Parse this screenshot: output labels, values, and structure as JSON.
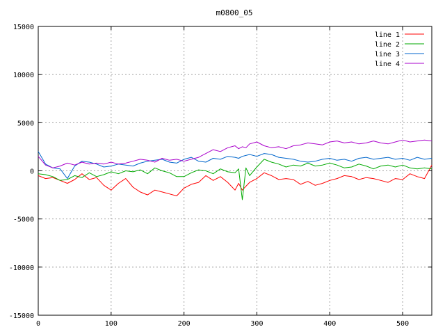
{
  "chart_data": {
    "type": "line",
    "title": "m0800_05",
    "xlabel": "",
    "ylabel": "",
    "xlim": [
      0,
      540
    ],
    "ylim": [
      -15000,
      15000
    ],
    "xticks": [
      0,
      100,
      200,
      300,
      400,
      500
    ],
    "yticks": [
      -15000,
      -10000,
      -5000,
      0,
      5000,
      10000,
      15000
    ],
    "xtick_labels": [
      "0",
      "100",
      "200",
      "300",
      "400",
      "500"
    ],
    "ytick_labels": [
      "-15000",
      "-10000",
      "-5000",
      "0",
      "5000",
      "10000",
      "15000"
    ],
    "grid": true,
    "legend_position": "top-right",
    "x": [
      0,
      10,
      20,
      30,
      40,
      50,
      60,
      70,
      80,
      90,
      100,
      110,
      120,
      130,
      140,
      150,
      160,
      170,
      180,
      190,
      200,
      210,
      220,
      230,
      240,
      250,
      260,
      270,
      275,
      280,
      285,
      290,
      300,
      310,
      320,
      330,
      340,
      350,
      360,
      370,
      380,
      390,
      400,
      410,
      420,
      430,
      440,
      450,
      460,
      470,
      480,
      490,
      500,
      510,
      520,
      530,
      540
    ],
    "series": [
      {
        "name": "line 1",
        "color": "#ff0000",
        "values": [
          -500,
          -800,
          -700,
          -1000,
          -1300,
          -900,
          -300,
          -900,
          -700,
          -1500,
          -2000,
          -1300,
          -800,
          -1700,
          -2200,
          -2500,
          -2000,
          -2200,
          -2400,
          -2600,
          -1800,
          -1400,
          -1200,
          -500,
          -1000,
          -600,
          -1200,
          -2000,
          -1300,
          -2000,
          -1600,
          -1200,
          -800,
          -200,
          -500,
          -900,
          -800,
          -900,
          -1400,
          -1100,
          -1500,
          -1300,
          -1000,
          -800,
          -500,
          -600,
          -900,
          -700,
          -800,
          -1000,
          -1200,
          -800,
          -900,
          -300,
          -600,
          -800,
          600
        ]
      },
      {
        "name": "line 2",
        "color": "#00aa00",
        "values": [
          -300,
          -400,
          -600,
          -1000,
          -900,
          -500,
          -700,
          -200,
          -600,
          -400,
          -100,
          -300,
          0,
          -100,
          100,
          -300,
          300,
          0,
          -200,
          -600,
          -600,
          -200,
          100,
          0,
          -300,
          200,
          -100,
          -200,
          200,
          -3000,
          300,
          -500,
          400,
          1200,
          900,
          700,
          400,
          600,
          500,
          800,
          500,
          600,
          800,
          600,
          300,
          400,
          700,
          500,
          200,
          500,
          600,
          400,
          600,
          300,
          200,
          300,
          200
        ]
      },
      {
        "name": "line 3",
        "color": "#0066cc",
        "values": [
          2000,
          700,
          300,
          200,
          -800,
          500,
          1000,
          900,
          700,
          400,
          500,
          700,
          600,
          500,
          800,
          1000,
          1100,
          1200,
          900,
          800,
          1200,
          1400,
          1000,
          900,
          1300,
          1200,
          1500,
          1400,
          1300,
          1500,
          1600,
          1700,
          1500,
          1800,
          1700,
          1400,
          1300,
          1200,
          1000,
          900,
          1000,
          1200,
          1300,
          1100,
          1200,
          1000,
          1300,
          1400,
          1200,
          1300,
          1400,
          1200,
          1300,
          1100,
          1400,
          1200,
          1300
        ]
      },
      {
        "name": "line 4",
        "color": "#aa00cc",
        "values": [
          1500,
          600,
          300,
          500,
          800,
          600,
          900,
          700,
          800,
          700,
          900,
          700,
          800,
          1000,
          1200,
          1100,
          900,
          1300,
          1100,
          1200,
          1000,
          1200,
          1400,
          1800,
          2200,
          2000,
          2400,
          2600,
          2300,
          2500,
          2400,
          2800,
          3000,
          2600,
          2400,
          2500,
          2300,
          2600,
          2700,
          2900,
          2800,
          2700,
          3000,
          3100,
          2900,
          3000,
          2800,
          2900,
          3100,
          2900,
          2800,
          3000,
          3200,
          3000,
          3100,
          3200,
          3100
        ]
      }
    ]
  }
}
